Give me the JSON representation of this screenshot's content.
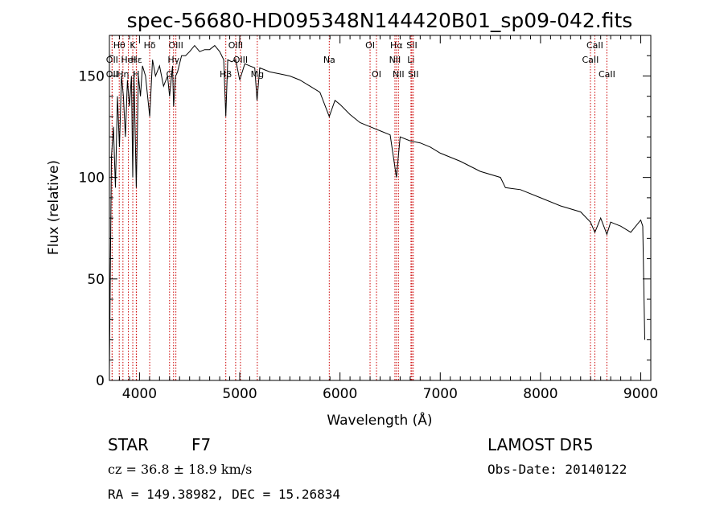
{
  "chart_data": {
    "type": "line",
    "title": "spec-56680-HD095348N144420B01_sp09-042.fits",
    "xlabel": "Wavelength (Å)",
    "ylabel": "Flux (relative)",
    "xlim": [
      3700,
      9100
    ],
    "ylim": [
      0,
      170
    ],
    "x_ticks": [
      4000,
      5000,
      6000,
      7000,
      8000,
      9000
    ],
    "y_ticks": [
      0,
      50,
      100,
      150
    ],
    "grid": false,
    "line_color": "#000000",
    "marker_color": "#cc0000",
    "series": [
      {
        "x": [
          3700,
          3720,
          3740,
          3760,
          3780,
          3800,
          3820,
          3840,
          3860,
          3880,
          3900,
          3920,
          3933,
          3945,
          3968,
          3990,
          4010,
          4030,
          4060,
          4102,
          4130,
          4160,
          4200,
          4240,
          4280,
          4300,
          4330,
          4340,
          4360,
          4380,
          4420,
          4460,
          4500,
          4550,
          4600,
          4650,
          4700,
          4750,
          4800,
          4840,
          4861,
          4880,
          4920,
          4960,
          5000,
          5050,
          5100,
          5150,
          5172,
          5200,
          5300,
          5400,
          5500,
          5600,
          5700,
          5800,
          5893,
          5950,
          6000,
          6100,
          6200,
          6300,
          6400,
          6500,
          6563,
          6600,
          6700,
          6800,
          6900,
          7000,
          7200,
          7400,
          7600,
          7650,
          7800,
          8000,
          8200,
          8400,
          8498,
          8542,
          8600,
          8662,
          8700,
          8800,
          8900,
          9000,
          9020,
          9040
        ],
        "y": [
          5,
          110,
          125,
          95,
          140,
          115,
          150,
          140,
          120,
          148,
          135,
          150,
          100,
          152,
          95,
          150,
          140,
          155,
          150,
          130,
          158,
          150,
          155,
          145,
          150,
          140,
          155,
          135,
          150,
          152,
          160,
          160,
          162,
          165,
          162,
          163,
          163,
          165,
          162,
          158,
          130,
          158,
          157,
          158,
          148,
          156,
          155,
          154,
          138,
          154,
          152,
          151,
          150,
          148,
          145,
          142,
          130,
          138,
          136,
          131,
          127,
          125,
          123,
          121,
          100,
          120,
          118,
          117,
          115,
          112,
          108,
          103,
          100,
          95,
          94,
          90,
          86,
          83,
          78,
          73,
          80,
          72,
          78,
          76,
          73,
          79,
          76,
          20
        ]
      }
    ],
    "line_markers": [
      {
        "label": "Hθ",
        "x": 3798,
        "row": 0
      },
      {
        "label": "OII",
        "x": 3727,
        "row": 1
      },
      {
        "label": "OII",
        "x": 3727,
        "row": 2
      },
      {
        "label": "Hη",
        "x": 3835,
        "row": 2
      },
      {
        "label": "HeI",
        "x": 3889,
        "row": 1
      },
      {
        "label": "K",
        "x": 3933,
        "row": 0
      },
      {
        "label": "H",
        "x": 3968,
        "row": 2
      },
      {
        "label": "Hε",
        "x": 3970,
        "row": 1
      },
      {
        "label": "Hδ",
        "x": 4102,
        "row": 0
      },
      {
        "label": "OIII",
        "x": 4363,
        "row": 0
      },
      {
        "label": "G",
        "x": 4300,
        "row": 2
      },
      {
        "label": "Hγ",
        "x": 4340,
        "row": 1
      },
      {
        "label": "OIII",
        "x": 4959,
        "row": 0
      },
      {
        "label": "OIII",
        "x": 5007,
        "row": 1
      },
      {
        "label": "Hβ",
        "x": 4861,
        "row": 2
      },
      {
        "label": "Mg",
        "x": 5175,
        "row": 2
      },
      {
        "label": "Na",
        "x": 5893,
        "row": 1
      },
      {
        "label": "OI",
        "x": 6300,
        "row": 0
      },
      {
        "label": "OI",
        "x": 6364,
        "row": 2
      },
      {
        "label": "Hα",
        "x": 6563,
        "row": 0
      },
      {
        "label": "NII",
        "x": 6548,
        "row": 1
      },
      {
        "label": "NII",
        "x": 6583,
        "row": 2
      },
      {
        "label": "SII",
        "x": 6717,
        "row": 0
      },
      {
        "label": "Li",
        "x": 6708,
        "row": 1
      },
      {
        "label": "SII",
        "x": 6731,
        "row": 2
      },
      {
        "label": "CaII",
        "x": 8542,
        "row": 0
      },
      {
        "label": "CaII",
        "x": 8498,
        "row": 1
      },
      {
        "label": "CaII",
        "x": 8662,
        "row": 2
      }
    ]
  },
  "info": {
    "object_class": "STAR",
    "subclass": "F7",
    "survey": "LAMOST DR5",
    "cz": "cz = 36.8 ± 18.9 km/s",
    "obs_date": "Obs-Date: 20140122",
    "coords": "RA = 149.38982, DEC =  15.26834"
  }
}
